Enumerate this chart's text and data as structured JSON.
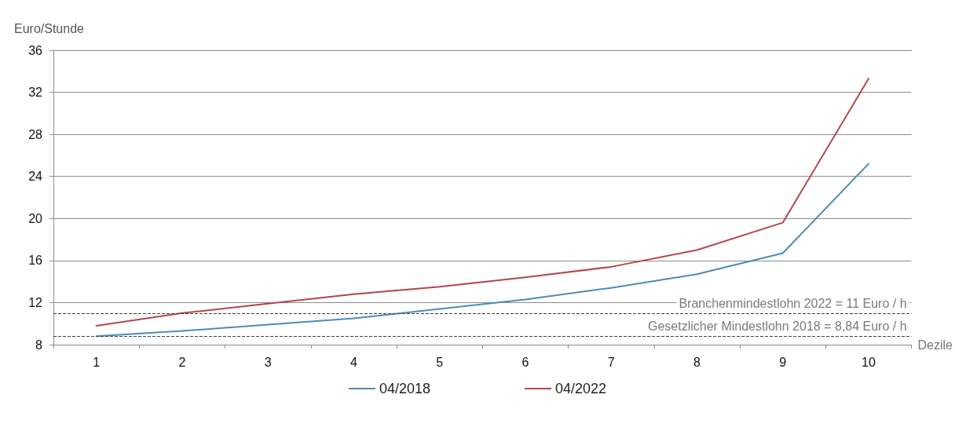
{
  "chart_data": {
    "type": "line",
    "ylabel": "Euro/Stunde",
    "xlabel": "Dezile",
    "categories": [
      "1",
      "2",
      "3",
      "4",
      "5",
      "6",
      "7",
      "8",
      "9",
      "10"
    ],
    "series": [
      {
        "name": "04/2018",
        "color": "#4a8db8",
        "values": [
          8.8,
          9.3,
          9.9,
          10.5,
          11.4,
          12.3,
          13.4,
          14.7,
          16.7,
          25.2
        ]
      },
      {
        "name": "04/2022",
        "color": "#b5464b",
        "values": [
          9.8,
          11.0,
          11.9,
          12.8,
          13.5,
          14.4,
          15.4,
          17.0,
          19.6,
          33.3
        ]
      }
    ],
    "ylim": [
      8,
      36
    ],
    "yticks": [
      8,
      12,
      16,
      20,
      24,
      28,
      32,
      36
    ],
    "grid": "y",
    "legend": "bottom",
    "marker": "none",
    "line_style": "solid",
    "ref_lines": [
      {
        "axis": "y",
        "value": 11,
        "label": "Branchenmindestlohn 2022 = 11 Euro / h",
        "color": "#404040",
        "line_style": "dashed"
      },
      {
        "axis": "y",
        "value": 8.84,
        "label": "Gesetzlicher Mindestlohn 2018 = 8,84 Euro / h",
        "color": "#404040",
        "line_style": "dashed"
      }
    ]
  }
}
